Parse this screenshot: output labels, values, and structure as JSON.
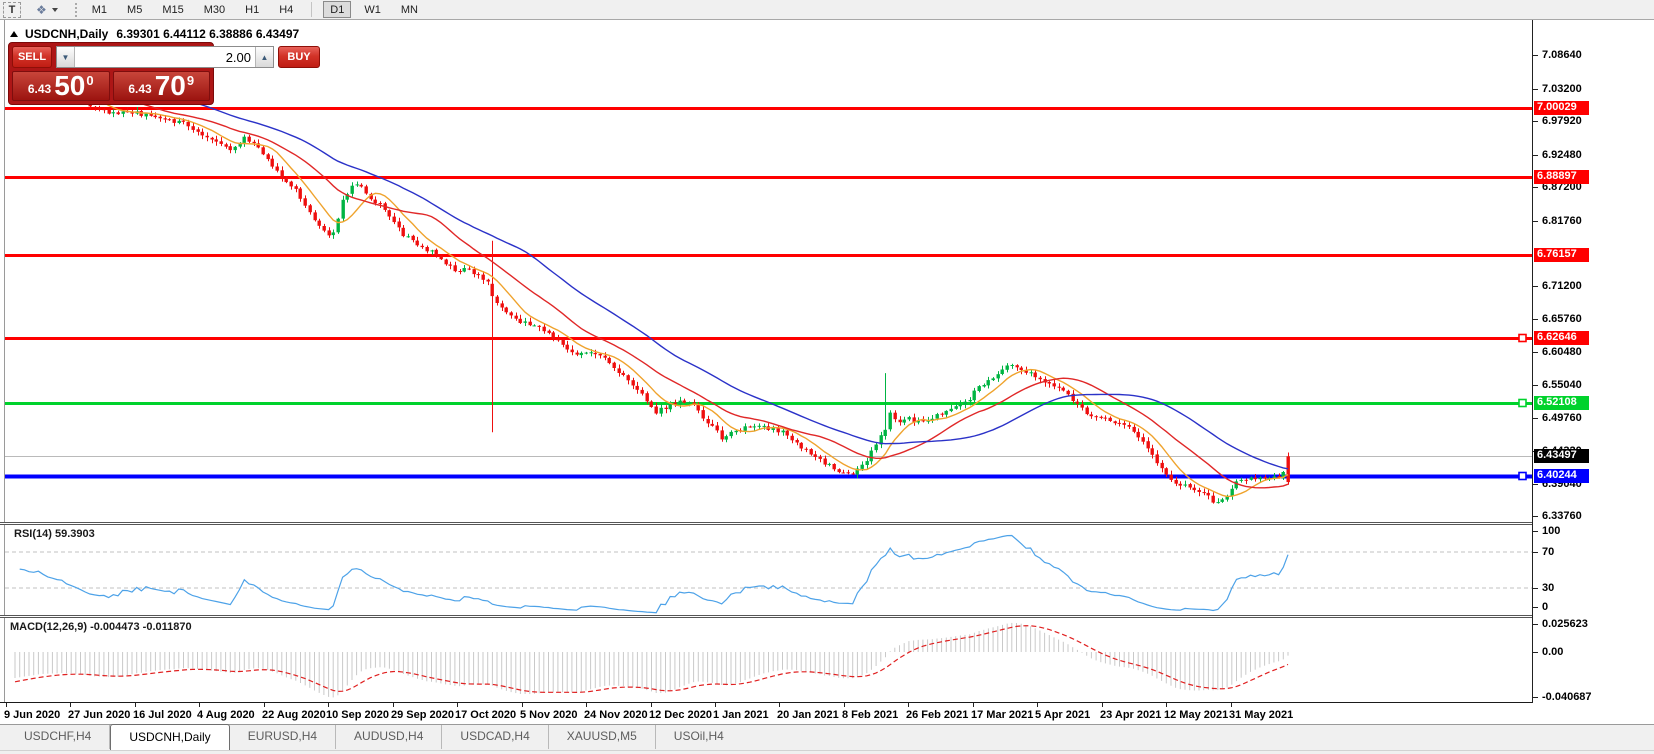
{
  "toolbar": {
    "text_tool_label": "T",
    "timeframes": [
      "M1",
      "M5",
      "M15",
      "M30",
      "H1",
      "H4",
      "D1",
      "W1",
      "MN"
    ],
    "active_timeframe": "D1"
  },
  "chart_header": {
    "title": "USDCNH,Daily",
    "ohlc_text": "6.39301 6.44112 6.38886 6.43497"
  },
  "trade_panel": {
    "sell_label": "SELL",
    "buy_label": "BUY",
    "volume": "2.00",
    "sell_price": {
      "prefix": "6.43",
      "big": "50",
      "sup": "0"
    },
    "buy_price": {
      "prefix": "6.43",
      "big": "70",
      "sup": "9"
    }
  },
  "chart_data": {
    "type": "candlestick",
    "symbol": "USDCNH",
    "timeframe": "Daily",
    "title_ohlc": {
      "open": "6.39301",
      "high": "6.44112",
      "low": "6.38886",
      "close": "6.43497"
    },
    "x_labels": [
      "9 Jun 2020",
      "27 Jun 2020",
      "16 Jul 2020",
      "4 Aug 2020",
      "22 Aug 2020",
      "10 Sep 2020",
      "29 Sep 2020",
      "17 Oct 2020",
      "5 Nov 2020",
      "24 Nov 2020",
      "12 Dec 2020",
      "1 Jan 2021",
      "20 Jan 2021",
      "8 Feb 2021",
      "26 Feb 2021",
      "17 Mar 2021",
      "5 Apr 2021",
      "23 Apr 2021",
      "12 May 2021",
      "31 May 2021"
    ],
    "y_ticks": [
      "7.08640",
      "7.03200",
      "6.97920",
      "6.92480",
      "6.87200",
      "6.81760",
      "6.71200",
      "6.65760",
      "6.60480",
      "6.55040",
      "6.49760",
      "6.44320",
      "6.39040",
      "6.33760"
    ],
    "price_lines": [
      {
        "price": 7.00029,
        "label": "7.00029",
        "color": "#ff0000",
        "thickness": 3,
        "handle": false,
        "current": false
      },
      {
        "price": 6.88897,
        "label": "6.88897",
        "color": "#ff0000",
        "thickness": 3,
        "handle": false,
        "current": false
      },
      {
        "price": 6.76157,
        "label": "6.76157",
        "color": "#ff0000",
        "thickness": 3,
        "handle": false,
        "current": false
      },
      {
        "price": 6.62646,
        "label": "6.62646",
        "color": "#ff0000",
        "thickness": 3,
        "handle": true,
        "current": false
      },
      {
        "price": 6.52108,
        "label": "6.52108",
        "color": "#00d22c",
        "thickness": 3,
        "handle": true,
        "current": false
      },
      {
        "price": 6.43497,
        "label": "6.43497",
        "color": "#bababa",
        "thickness": 1,
        "handle": false,
        "current": true,
        "label_bg": "#000000"
      },
      {
        "price": 6.40244,
        "label": "6.40244",
        "color": "#0000ff",
        "thickness": 4,
        "handle": true,
        "current": false
      }
    ],
    "candle_colors": {
      "up": "#00b443",
      "down": "#ee0f0f"
    },
    "moving_averages": [
      {
        "period": 8,
        "color": "#efa32d"
      },
      {
        "period": 20,
        "color": "#e02828"
      },
      {
        "period": 40,
        "color": "#2b32c8"
      }
    ],
    "bars_estimated": true,
    "estimated_close_path": [
      [
        10,
        7.058
      ],
      [
        40,
        7.048
      ],
      [
        70,
        7.022
      ],
      [
        90,
        7.0
      ],
      [
        105,
        6.992
      ],
      [
        125,
        6.994
      ],
      [
        145,
        6.988
      ],
      [
        165,
        6.981
      ],
      [
        180,
        6.974
      ],
      [
        195,
        6.961
      ],
      [
        210,
        6.948
      ],
      [
        225,
        6.934
      ],
      [
        240,
        6.951
      ],
      [
        252,
        6.94
      ],
      [
        265,
        6.912
      ],
      [
        278,
        6.885
      ],
      [
        290,
        6.868
      ],
      [
        303,
        6.838
      ],
      [
        316,
        6.803
      ],
      [
        327,
        6.79
      ],
      [
        338,
        6.85
      ],
      [
        350,
        6.88
      ],
      [
        362,
        6.86
      ],
      [
        375,
        6.843
      ],
      [
        388,
        6.82
      ],
      [
        400,
        6.792
      ],
      [
        412,
        6.78
      ],
      [
        425,
        6.768
      ],
      [
        437,
        6.752
      ],
      [
        450,
        6.737
      ],
      [
        462,
        6.742
      ],
      [
        475,
        6.726
      ],
      [
        484,
        6.716
      ],
      [
        492,
        6.686
      ],
      [
        500,
        6.672
      ],
      [
        512,
        6.656
      ],
      [
        525,
        6.648
      ],
      [
        538,
        6.64
      ],
      [
        550,
        6.624
      ],
      [
        562,
        6.61
      ],
      [
        575,
        6.601
      ],
      [
        588,
        6.606
      ],
      [
        600,
        6.596
      ],
      [
        612,
        6.576
      ],
      [
        625,
        6.553
      ],
      [
        638,
        6.536
      ],
      [
        650,
        6.506
      ],
      [
        662,
        6.516
      ],
      [
        675,
        6.527
      ],
      [
        688,
        6.52
      ],
      [
        700,
        6.492
      ],
      [
        710,
        6.479
      ],
      [
        718,
        6.462
      ],
      [
        727,
        6.474
      ],
      [
        740,
        6.481
      ],
      [
        752,
        6.487
      ],
      [
        765,
        6.479
      ],
      [
        778,
        6.474
      ],
      [
        790,
        6.458
      ],
      [
        800,
        6.445
      ],
      [
        812,
        6.432
      ],
      [
        824,
        6.42
      ],
      [
        836,
        6.41
      ],
      [
        848,
        6.405
      ],
      [
        858,
        6.42
      ],
      [
        866,
        6.44
      ],
      [
        875,
        6.468
      ],
      [
        885,
        6.505
      ],
      [
        895,
        6.49
      ],
      [
        905,
        6.496
      ],
      [
        915,
        6.489
      ],
      [
        925,
        6.496
      ],
      [
        935,
        6.505
      ],
      [
        945,
        6.512
      ],
      [
        955,
        6.52
      ],
      [
        965,
        6.53
      ],
      [
        975,
        6.55
      ],
      [
        985,
        6.56
      ],
      [
        995,
        6.572
      ],
      [
        1003,
        6.583
      ],
      [
        1012,
        6.578
      ],
      [
        1022,
        6.572
      ],
      [
        1032,
        6.563
      ],
      [
        1045,
        6.553
      ],
      [
        1058,
        6.544
      ],
      [
        1070,
        6.52
      ],
      [
        1082,
        6.506
      ],
      [
        1095,
        6.497
      ],
      [
        1108,
        6.492
      ],
      [
        1120,
        6.486
      ],
      [
        1130,
        6.474
      ],
      [
        1140,
        6.452
      ],
      [
        1150,
        6.43
      ],
      [
        1160,
        6.408
      ],
      [
        1170,
        6.394
      ],
      [
        1180,
        6.386
      ],
      [
        1190,
        6.382
      ],
      [
        1200,
        6.374
      ],
      [
        1210,
        6.36
      ],
      [
        1220,
        6.367
      ],
      [
        1230,
        6.392
      ],
      [
        1242,
        6.399
      ],
      [
        1254,
        6.402
      ],
      [
        1266,
        6.398
      ],
      [
        1276,
        6.401
      ],
      [
        1284,
        6.435
      ]
    ],
    "special_bars": [
      {
        "x": 487,
        "open": 6.715,
        "close": 6.695,
        "high": 6.785,
        "low": 6.474
      },
      {
        "x": 880,
        "open": 6.468,
        "close": 6.478,
        "high": 6.57,
        "low": 6.462
      }
    ],
    "last_bar": {
      "open": 6.39301,
      "high": 6.44112,
      "low": 6.38886,
      "close": 6.43497,
      "rendered_color": "down"
    },
    "indicators": {
      "rsi": {
        "label": "RSI(14) 59.3903",
        "period": 14,
        "current": 59.3903,
        "scale": [
          "100",
          "70",
          "30",
          "0"
        ],
        "levels": [
          70,
          30
        ],
        "color": "#4da2e8",
        "level_color": "#c2c2c2"
      },
      "macd": {
        "label": "MACD(12,26,9) -0.004473 -0.011870",
        "params": [
          12,
          26,
          9
        ],
        "macd": -0.004473,
        "signal": -0.01187,
        "scale": [
          "0.025623",
          "0.00",
          "-0.040687"
        ],
        "histogram_color": "#c9c9c9",
        "signal_color": "#e02020"
      }
    }
  },
  "tabs": {
    "items": [
      "USDCHF,H4",
      "USDCNH,Daily",
      "EURUSD,H4",
      "AUDUSD,H4",
      "USDCAD,H4",
      "XAUUSD,M5",
      "USOil,H4"
    ],
    "active": "USDCNH,Daily"
  }
}
